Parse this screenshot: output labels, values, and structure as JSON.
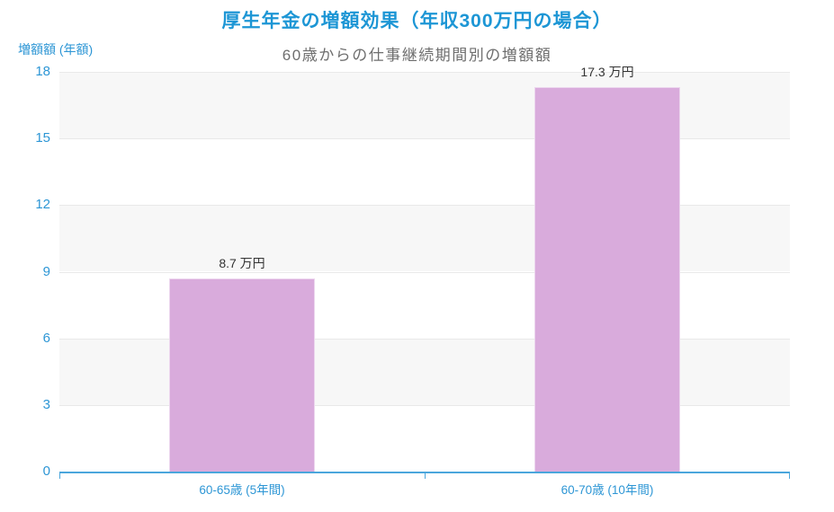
{
  "chart_data": {
    "type": "bar",
    "title": "厚生年金の増額効果（年収300万円の場合）",
    "subtitle": "60歳からの仕事継続期間別の増額額",
    "ylabel": "増額額 (年額)",
    "xlabel": "",
    "unit": "万円",
    "categories": [
      "60-65歳 (5年間)",
      "60-70歳 (10年間)"
    ],
    "values": [
      8.7,
      17.3
    ],
    "value_labels": [
      "8.7 万円",
      "17.3 万円"
    ],
    "ylim": [
      0,
      18
    ],
    "yticks": [
      0,
      3,
      6,
      9,
      12,
      15,
      18
    ],
    "grid": "horizontal bands alternating shaded/plain with gridline at each tick",
    "legend_position": "none",
    "colors": {
      "background": "#ffffff",
      "title": "#1d96d5",
      "subtitle": "#6e6e6e",
      "axis_labels": "#2d96d5",
      "axis_line": "#4ba6dc",
      "bar_fill": "#d9abdc",
      "bar_border": "#ecd6ee",
      "band_shaded": "#f7f7f7",
      "band_plain": "#ffffff",
      "gridline": "#e9e9e9",
      "value_label": "#333333"
    }
  }
}
